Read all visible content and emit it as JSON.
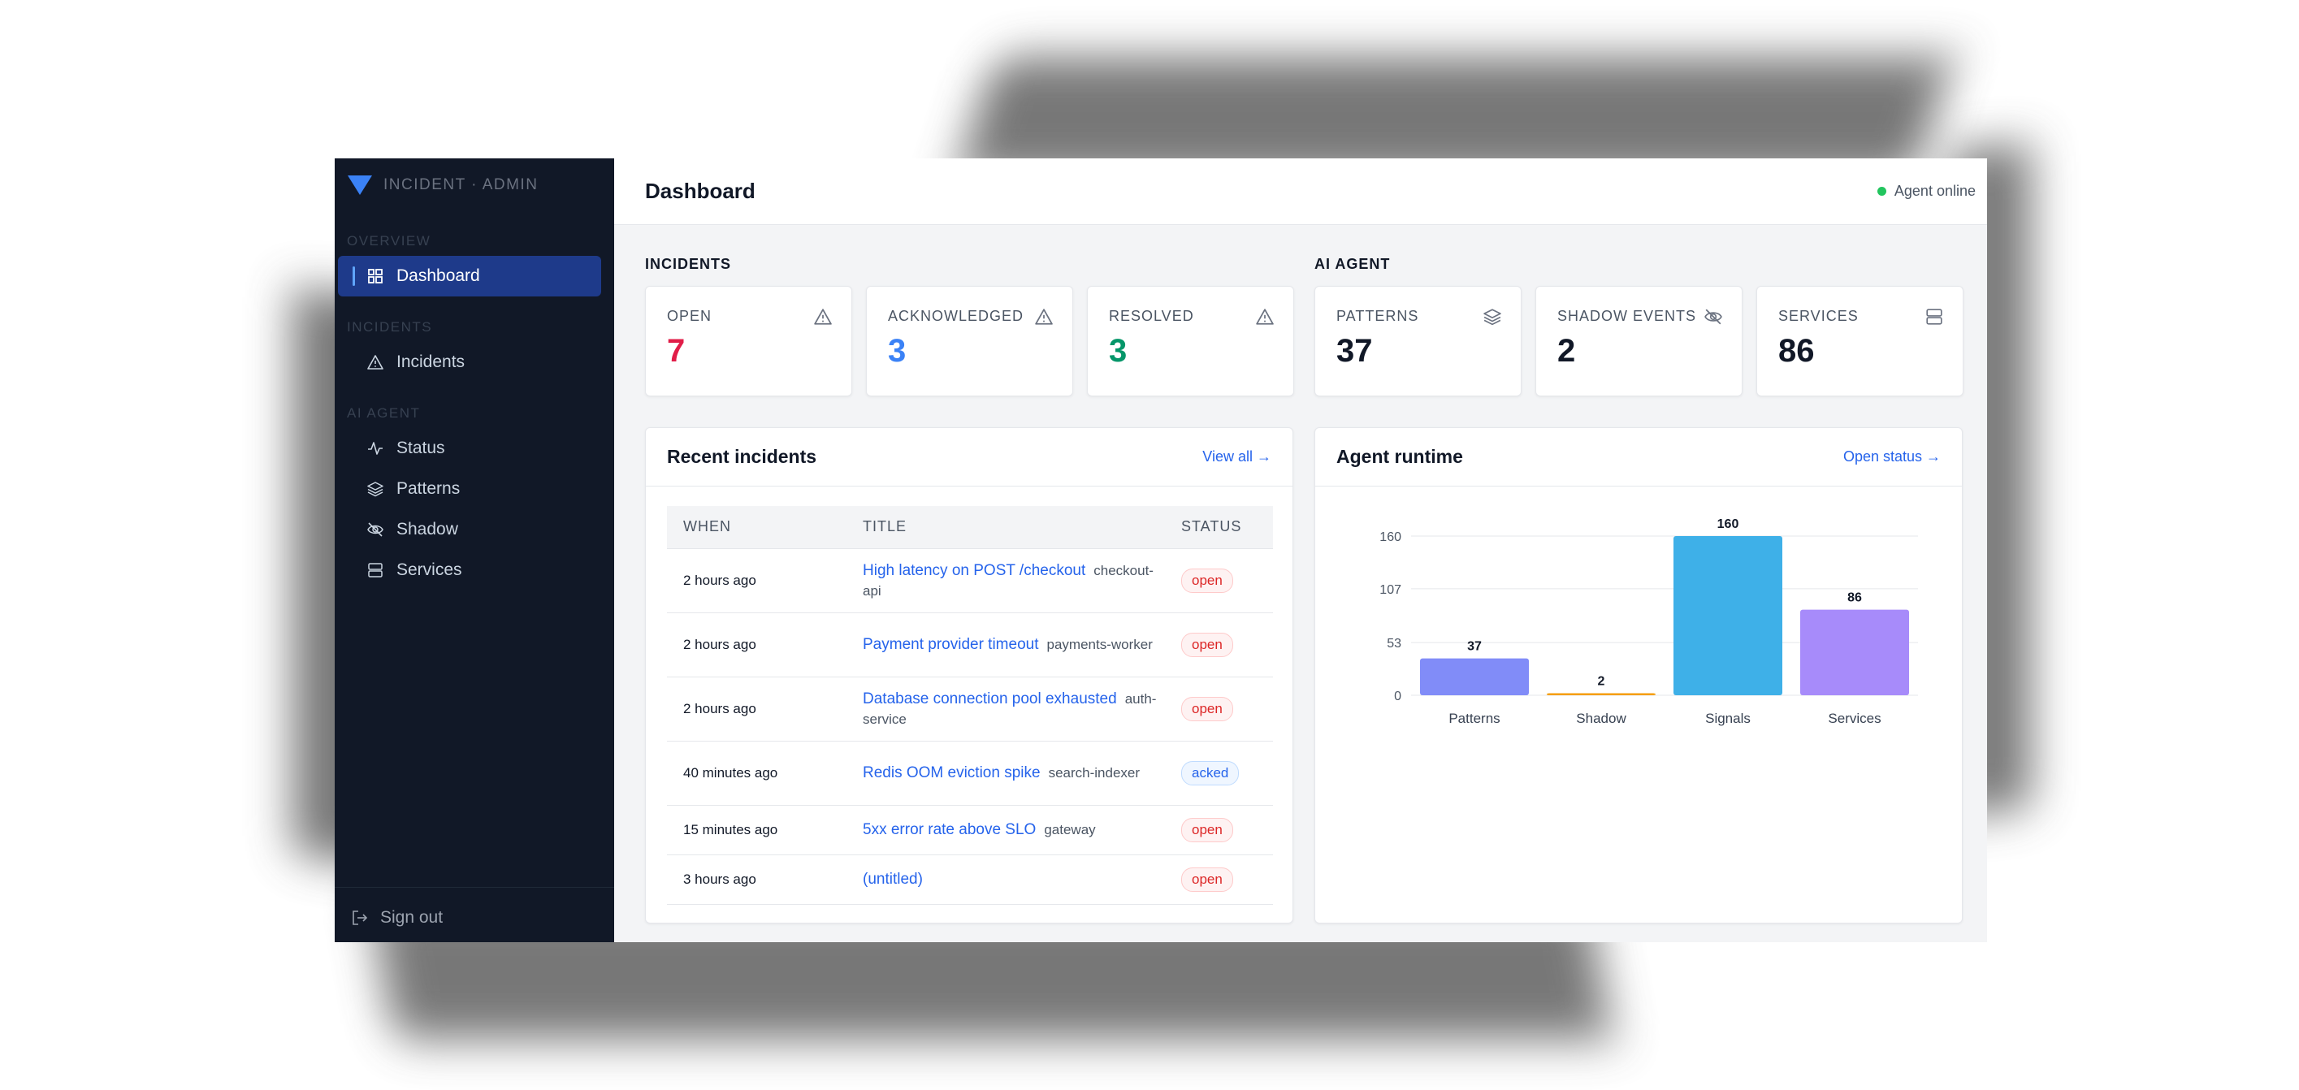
{
  "brand": {
    "name": "INCIDENT · ADMIN"
  },
  "sidebar": {
    "sections": [
      {
        "label": "OVERVIEW"
      },
      {
        "label": "INCIDENTS"
      },
      {
        "label": "AI AGENT"
      }
    ],
    "items": [
      {
        "label": "Dashboard",
        "icon": "grid-icon",
        "active": true
      },
      {
        "label": "Incidents",
        "icon": "warning-icon"
      },
      {
        "label": "Status",
        "icon": "activity-icon"
      },
      {
        "label": "Patterns",
        "icon": "layers-icon"
      },
      {
        "label": "Shadow",
        "icon": "eye-off-icon"
      },
      {
        "label": "Services",
        "icon": "server-icon"
      }
    ],
    "signout": "Sign out"
  },
  "header": {
    "title": "Dashboard",
    "agent_status": "Agent online"
  },
  "groups": {
    "incidents": "INCIDENTS",
    "agent": "AI AGENT"
  },
  "stats": [
    {
      "label": "OPEN",
      "value": "7",
      "color": "#e11d48",
      "icon": "warning-icon"
    },
    {
      "label": "ACKNOWLEDGED",
      "value": "3",
      "color": "#3b82f6",
      "icon": "warning-icon"
    },
    {
      "label": "RESOLVED",
      "value": "3",
      "color": "#059669",
      "icon": "warning-icon"
    },
    {
      "label": "PATTERNS",
      "value": "37",
      "color": "#111827",
      "icon": "layers-icon"
    },
    {
      "label": "SHADOW EVENTS",
      "value": "2",
      "color": "#111827",
      "icon": "eye-off-icon"
    },
    {
      "label": "SERVICES",
      "value": "86",
      "color": "#111827",
      "icon": "server-icon"
    }
  ],
  "recent": {
    "title": "Recent incidents",
    "link": "View all →",
    "columns": [
      "WHEN",
      "TITLE",
      "STATUS"
    ],
    "rows": [
      {
        "when": "2 hours ago",
        "title": "High latency on POST /checkout",
        "service": "checkout-api",
        "status": "open"
      },
      {
        "when": "2 hours ago",
        "title": "Payment provider timeout",
        "service": "payments-worker",
        "status": "open"
      },
      {
        "when": "2 hours ago",
        "title": "Database connection pool exhausted",
        "service": "auth-service",
        "status": "open"
      },
      {
        "when": "40 minutes ago",
        "title": "Redis OOM eviction spike",
        "service": "search-indexer",
        "status": "acked"
      },
      {
        "when": "15 minutes ago",
        "title": "5xx error rate above SLO",
        "service": "gateway",
        "status": "open"
      },
      {
        "when": "3 hours ago",
        "title": "(untitled)",
        "service": "",
        "status": "open"
      }
    ]
  },
  "runtime": {
    "title": "Agent runtime",
    "link": "Open status →"
  },
  "chart_data": {
    "type": "bar",
    "categories": [
      "Patterns",
      "Shadow",
      "Signals",
      "Services"
    ],
    "values": [
      37,
      2,
      160,
      86
    ],
    "colors": [
      "#818cf8",
      "#f59e0b",
      "#3eb0e8",
      "#a78bfa"
    ],
    "yticks": [
      0,
      53,
      107,
      160
    ],
    "ylim": [
      0,
      160
    ],
    "grid": true,
    "title": "",
    "xlabel": "",
    "ylabel": ""
  }
}
